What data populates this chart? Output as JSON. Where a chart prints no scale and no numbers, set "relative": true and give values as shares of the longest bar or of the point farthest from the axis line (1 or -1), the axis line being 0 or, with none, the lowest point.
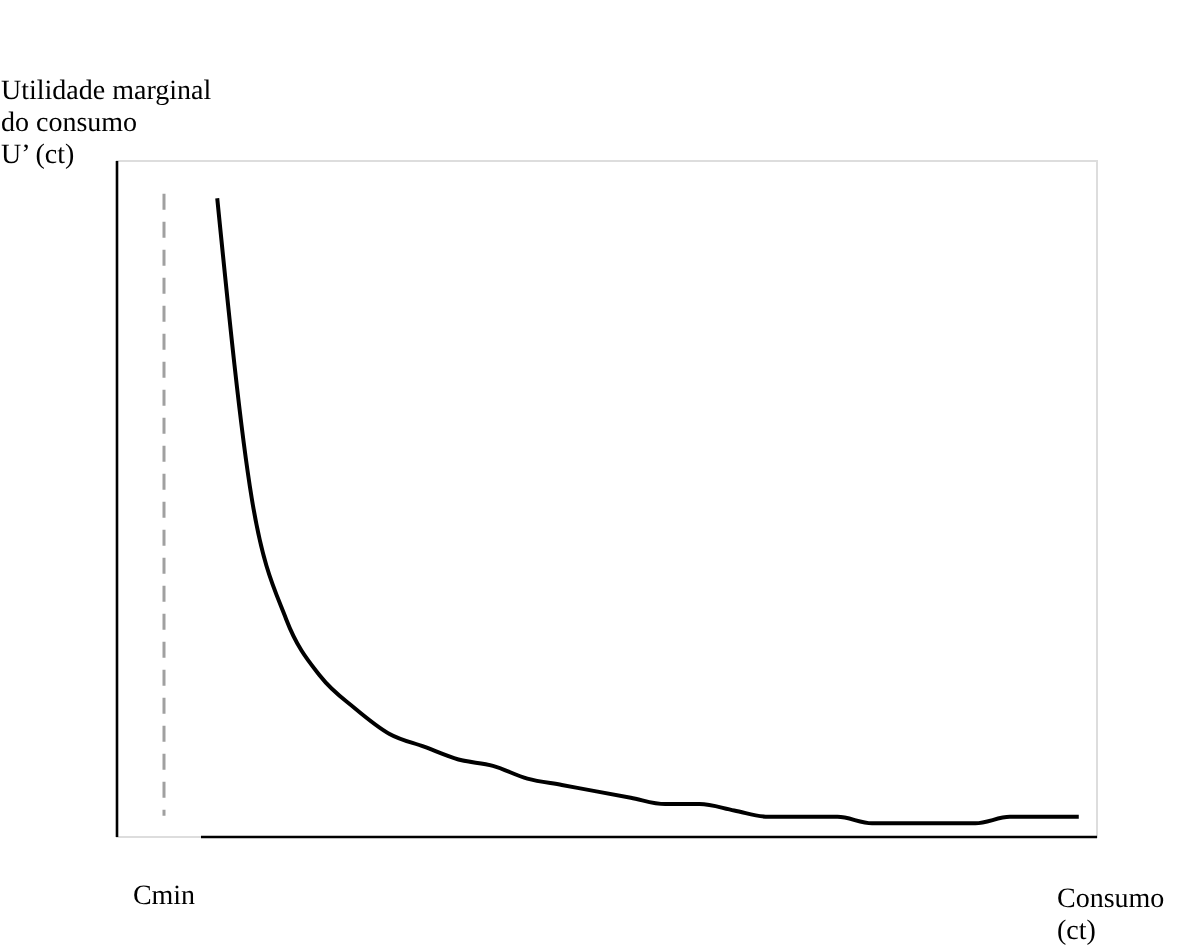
{
  "chart_data": {
    "type": "line",
    "relative": true,
    "ylabel": "Utilidade marginal\ndo consumo\nU’ (ct)",
    "xlabel": "Consumo\n(ct)",
    "categories": [
      null,
      null,
      null,
      null,
      null,
      null,
      null,
      null,
      null,
      null,
      null,
      null,
      null,
      null,
      null,
      null,
      null,
      null,
      null,
      null,
      null,
      null,
      null,
      null,
      null,
      null
    ],
    "series": [
      {
        "color": "#000000",
        "values": [
          1.0,
          0.53,
          0.34,
          0.25,
          0.2,
          0.16,
          0.14,
          0.12,
          0.11,
          0.09,
          0.08,
          0.07,
          0.06,
          0.05,
          0.05,
          0.04,
          0.03,
          0.03,
          0.03,
          0.02,
          0.02,
          0.02,
          0.02,
          0.03,
          0.03,
          0.03
        ]
      }
    ],
    "ref_lines": [
      {
        "axis": "x",
        "label": "Cmin",
        "color": "#a0a0a0",
        "line_style": "dashed"
      }
    ],
    "grid": false,
    "marker": "none",
    "line_style": "solid"
  }
}
